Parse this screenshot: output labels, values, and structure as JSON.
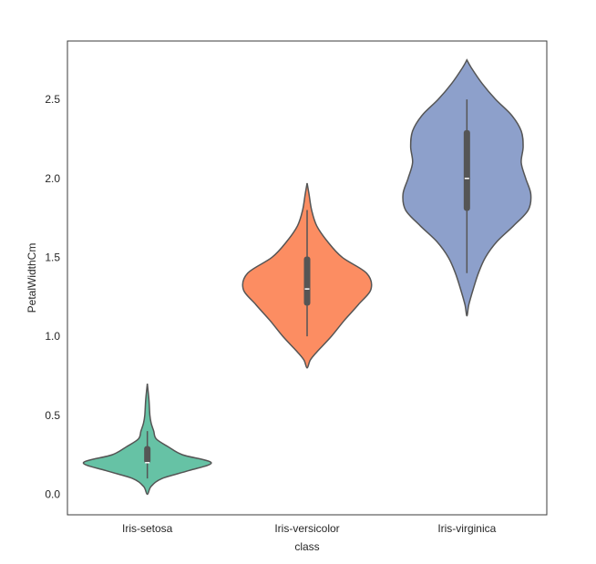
{
  "chart_data": {
    "type": "violin",
    "xlabel": "class",
    "ylabel": "PetalWidthCm",
    "ylim": [
      -0.13,
      2.87
    ],
    "yticks": [
      0.0,
      0.5,
      1.0,
      1.5,
      2.0,
      2.5
    ],
    "ytick_labels": [
      "0.0",
      "0.5",
      "1.0",
      "1.5",
      "2.0",
      "2.5"
    ],
    "grid": false,
    "categories": [
      "Iris-setosa",
      "Iris-versicolor",
      "Iris-virginica"
    ],
    "series": [
      {
        "category": "Iris-setosa",
        "color": "#66c2a5",
        "range": [
          0.0,
          0.7
        ],
        "whisker": [
          0.1,
          0.4
        ],
        "q1": 0.2,
        "median": 0.2,
        "q3": 0.3,
        "density": [
          [
            0.0,
            0.0
          ],
          [
            0.05,
            0.06
          ],
          [
            0.1,
            0.23
          ],
          [
            0.15,
            0.65
          ],
          [
            0.2,
            1.0
          ],
          [
            0.25,
            0.55
          ],
          [
            0.3,
            0.33
          ],
          [
            0.35,
            0.14
          ],
          [
            0.4,
            0.1
          ],
          [
            0.45,
            0.06
          ],
          [
            0.5,
            0.04
          ],
          [
            0.6,
            0.025
          ],
          [
            0.7,
            0.0
          ]
        ]
      },
      {
        "category": "Iris-versicolor",
        "color": "#fc8d62",
        "range": [
          0.8,
          1.97
        ],
        "whisker": [
          1.0,
          1.8
        ],
        "q1": 1.2,
        "median": 1.3,
        "q3": 1.5,
        "density": [
          [
            0.8,
            0.0
          ],
          [
            0.85,
            0.05
          ],
          [
            0.9,
            0.15
          ],
          [
            1.0,
            0.38
          ],
          [
            1.1,
            0.58
          ],
          [
            1.2,
            0.8
          ],
          [
            1.3,
            1.0
          ],
          [
            1.4,
            0.93
          ],
          [
            1.5,
            0.55
          ],
          [
            1.6,
            0.32
          ],
          [
            1.7,
            0.15
          ],
          [
            1.8,
            0.07
          ],
          [
            1.9,
            0.03
          ],
          [
            1.97,
            0.0
          ]
        ]
      },
      {
        "category": "Iris-virginica",
        "color": "#8da0cb",
        "range": [
          1.13,
          2.75
        ],
        "whisker": [
          1.4,
          2.5
        ],
        "q1": 1.8,
        "median": 2.0,
        "q3": 2.3,
        "density": [
          [
            1.13,
            0.0
          ],
          [
            1.2,
            0.03
          ],
          [
            1.3,
            0.1
          ],
          [
            1.4,
            0.18
          ],
          [
            1.5,
            0.29
          ],
          [
            1.6,
            0.47
          ],
          [
            1.7,
            0.73
          ],
          [
            1.8,
            0.96
          ],
          [
            1.9,
            1.0
          ],
          [
            2.0,
            0.92
          ],
          [
            2.1,
            0.85
          ],
          [
            2.2,
            0.88
          ],
          [
            2.3,
            0.85
          ],
          [
            2.4,
            0.7
          ],
          [
            2.5,
            0.45
          ],
          [
            2.6,
            0.24
          ],
          [
            2.7,
            0.07
          ],
          [
            2.75,
            0.0
          ]
        ]
      }
    ]
  }
}
